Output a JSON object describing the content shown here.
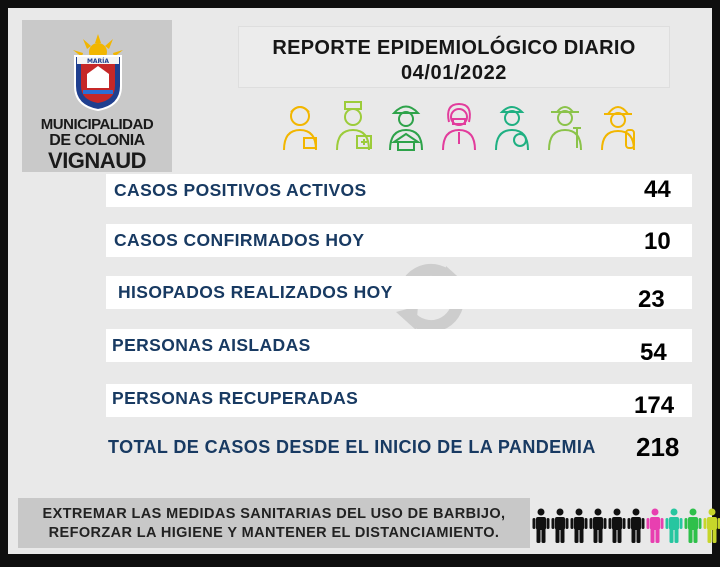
{
  "logo": {
    "banner_text": "MARÍA",
    "line1": "MUNICIPALIDAD",
    "line2": "DE COLONIA",
    "line3": "VIGNAUD"
  },
  "title": {
    "line1": "REPORTE EPIDEMIOLÓGICO DIARIO",
    "line2": "04/01/2022"
  },
  "workers": [
    "worker-icon",
    "nurse-icon",
    "builder-icon",
    "doctor-icon",
    "medic-icon",
    "farmer-icon",
    "firefighter-icon"
  ],
  "stats": [
    {
      "label": "CASOS POSITIVOS ACTIVOS",
      "value": "44"
    },
    {
      "label": "CASOS CONFIRMADOS HOY",
      "value": "10"
    },
    {
      "label": "HISOPADOS REALIZADOS HOY",
      "value": "23"
    },
    {
      "label": "PERSONAS AISLADAS",
      "value": "54"
    },
    {
      "label": "PERSONAS RECUPERADAS",
      "value": "174"
    },
    {
      "label": "TOTAL DE CASOS DESDE EL INICIO DE LA PANDEMIA",
      "value": "218"
    }
  ],
  "footer": {
    "line1": "EXTREMAR LAS MEDIDAS SANITARIAS DEL USO DE BARBIJO,",
    "line2": "REFORZAR LA HIGIENE Y MANTENER EL DISTANCIAMIENTO."
  },
  "colors": {
    "label_blue": "#183a62",
    "people": [
      "#111111",
      "#111111",
      "#111111",
      "#111111",
      "#111111",
      "#111111",
      "#e83fb0",
      "#26c6a0",
      "#2ec04a",
      "#c7d62a",
      "#f2c000"
    ]
  }
}
